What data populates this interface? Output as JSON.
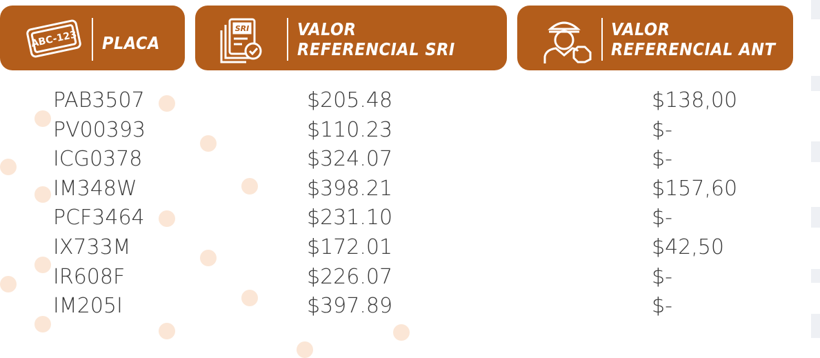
{
  "table": {
    "headers": [
      [
        "PLACA"
      ],
      [
        "VALOR",
        "REFERENCIAL SRI"
      ],
      [
        "VALOR",
        "REFERENCIAL ANT"
      ]
    ],
    "rows": [
      [
        "PAB3507",
        "$205.48",
        "$138,00"
      ],
      [
        "PV00393",
        "$110.23",
        "$-"
      ],
      [
        "ICG0378",
        "$324.07",
        "$-"
      ],
      [
        "IM348W",
        "$398.21",
        "$157,60"
      ],
      [
        "PCF3464",
        "$231.10",
        "$-"
      ],
      [
        "IX733M",
        "$172.01",
        "$42,50"
      ],
      [
        "IR608F",
        "$226.07",
        "$-"
      ],
      [
        "IM205I",
        "$397.89",
        "$-"
      ]
    ]
  }
}
